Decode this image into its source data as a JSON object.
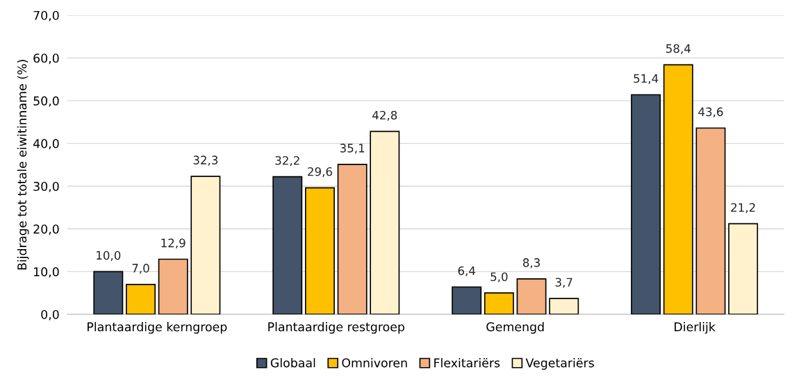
{
  "chart_data": {
    "type": "bar",
    "ylabel": "Bijdrage tot totale eiwitinname (%)",
    "categories": [
      "Plantaardige kerngroep",
      "Plantaardige restgroep",
      "Gemengd",
      "Dierlijk"
    ],
    "series": [
      {
        "name": "Globaal",
        "color": "#44546a",
        "values": [
          10.0,
          32.2,
          6.4,
          51.4
        ],
        "value_labels": [
          "10,0",
          "32,2",
          "6,4",
          "51,4"
        ]
      },
      {
        "name": "Omnivoren",
        "color": "#ffc000",
        "values": [
          7.0,
          29.6,
          5.0,
          58.4
        ],
        "value_labels": [
          "7,0",
          "29,6",
          "5,0",
          "58,4"
        ]
      },
      {
        "name": "Flexitariërs",
        "color": "#f4b183",
        "values": [
          12.9,
          35.1,
          8.3,
          43.6
        ],
        "value_labels": [
          "12,9",
          "35,1",
          "8,3",
          "43,6"
        ]
      },
      {
        "name": "Vegetariërs",
        "color": "#fff2cc",
        "values": [
          32.3,
          42.8,
          3.7,
          21.2
        ],
        "value_labels": [
          "32,3",
          "42,8",
          "3,7",
          "21,2"
        ]
      }
    ],
    "ylim": [
      0,
      70
    ],
    "yticks": [
      {
        "value": 0,
        "label": "0,0"
      },
      {
        "value": 10,
        "label": "10,0"
      },
      {
        "value": 20,
        "label": "20,0"
      },
      {
        "value": 30,
        "label": "30,0"
      },
      {
        "value": 40,
        "label": "40,0"
      },
      {
        "value": 50,
        "label": "50,0"
      },
      {
        "value": 60,
        "label": "60,0"
      },
      {
        "value": 70,
        "label": "70,0"
      }
    ],
    "grid": "y",
    "legend": "bottom"
  }
}
